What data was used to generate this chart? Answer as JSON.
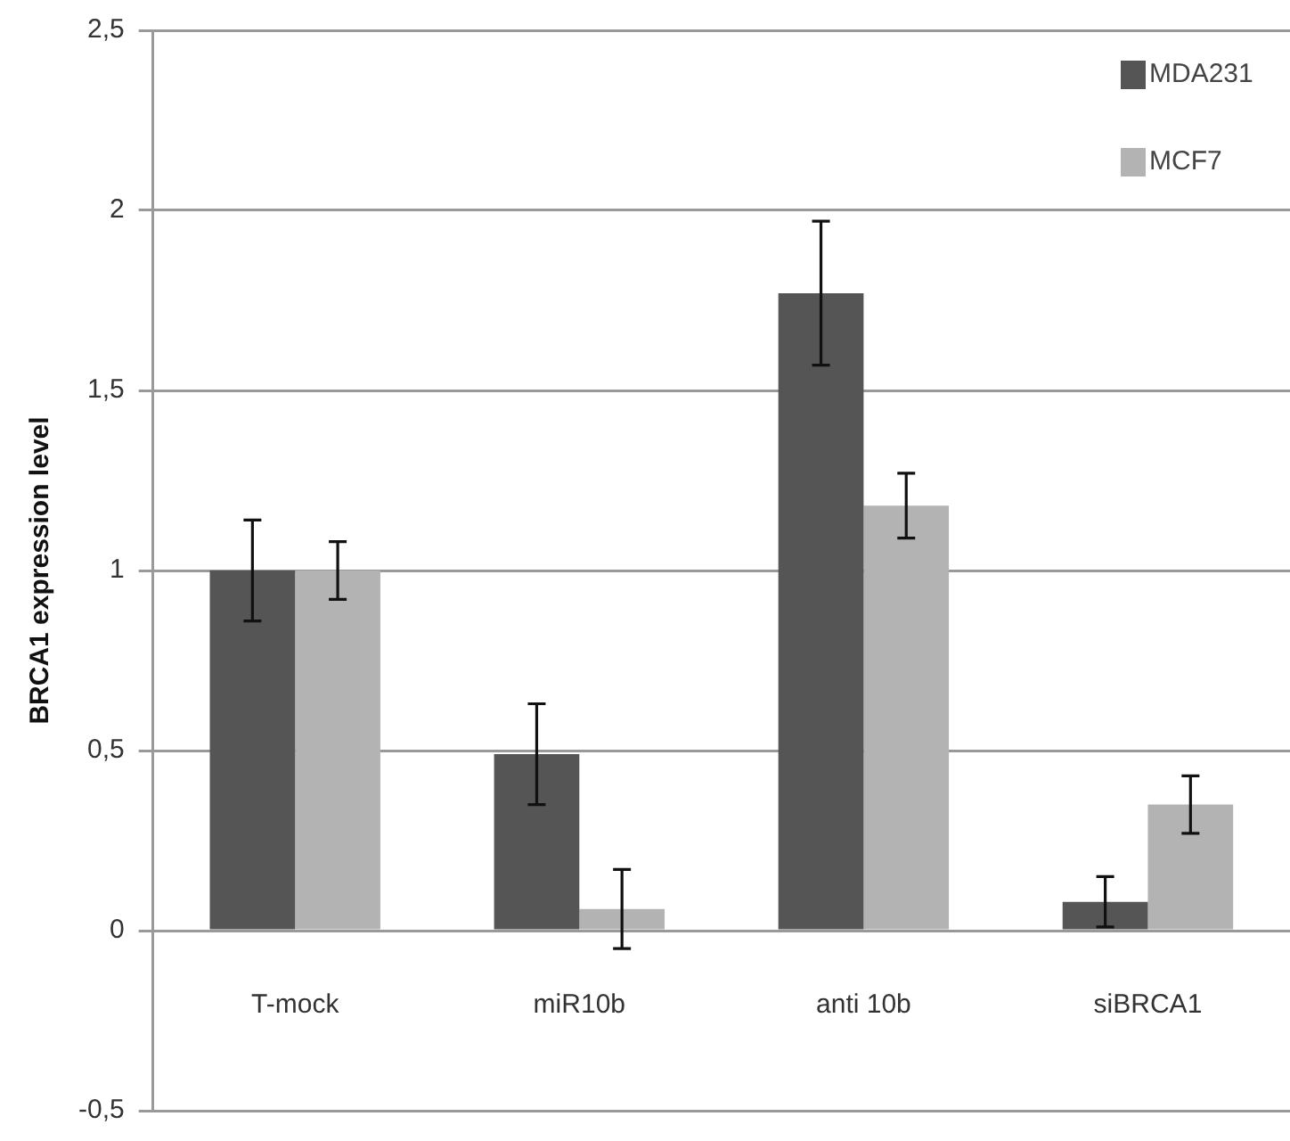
{
  "chart_data": {
    "type": "bar",
    "ylabel": "BRCA1 expression level",
    "categories": [
      "T-mock",
      "miR10b",
      "anti 10b",
      "siBRCA1"
    ],
    "series": [
      {
        "name": "MDA231",
        "color": "#555555",
        "values": [
          1.0,
          0.49,
          1.77,
          0.08
        ],
        "errors": [
          0.14,
          0.14,
          0.2,
          0.07
        ]
      },
      {
        "name": "MCF7",
        "color": "#b3b3b3",
        "values": [
          1.0,
          0.06,
          1.18,
          0.35
        ],
        "errors": [
          0.08,
          0.11,
          0.09,
          0.08
        ]
      }
    ],
    "ylim": [
      -0.5,
      2.5
    ],
    "yticks": [
      {
        "value": -0.5,
        "label": "-0,5"
      },
      {
        "value": 0,
        "label": "0"
      },
      {
        "value": 0.5,
        "label": "0,5"
      },
      {
        "value": 1,
        "label": "1"
      },
      {
        "value": 1.5,
        "label": "1,5"
      },
      {
        "value": 2,
        "label": "2"
      },
      {
        "value": 2.5,
        "label": "2,5"
      }
    ],
    "grid": "y",
    "legend": "top right"
  }
}
